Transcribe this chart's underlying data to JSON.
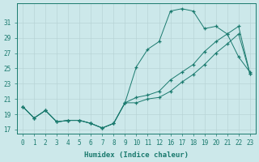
{
  "bg_color": "#cce8ea",
  "line_color": "#1a7a6e",
  "grid_color": "#b8d4d6",
  "xlabel": "Humidex (Indice chaleur)",
  "xlabels": [
    "0",
    "1",
    "2",
    "3",
    "4",
    "5",
    "6",
    "7",
    "8",
    "9",
    "10",
    "11",
    "12",
    "16",
    "17",
    "18",
    "19",
    "20",
    "21",
    "22",
    "23"
  ],
  "ylim": [
    16.5,
    33.5
  ],
  "yticks": [
    17,
    19,
    21,
    23,
    25,
    27,
    29,
    31
  ],
  "curve1_y": [
    20.0,
    18.5,
    19.5,
    18.0,
    18.2,
    18.2,
    17.8,
    17.2,
    17.8,
    20.5,
    25.2,
    27.5,
    28.5,
    32.5,
    32.8,
    32.5,
    30.2,
    30.5,
    29.5,
    26.5,
    24.5
  ],
  "curve2_y": [
    20.0,
    18.5,
    19.5,
    18.0,
    18.2,
    18.2,
    17.8,
    17.2,
    17.8,
    20.5,
    21.2,
    21.5,
    22.0,
    23.5,
    24.5,
    25.5,
    27.2,
    28.5,
    29.5,
    30.5,
    24.3
  ],
  "curve3_y": [
    20.0,
    18.5,
    19.5,
    18.0,
    18.2,
    18.2,
    17.8,
    17.2,
    17.8,
    20.5,
    20.5,
    21.0,
    21.2,
    22.0,
    23.2,
    24.2,
    25.5,
    27.0,
    28.2,
    29.5,
    24.3
  ]
}
